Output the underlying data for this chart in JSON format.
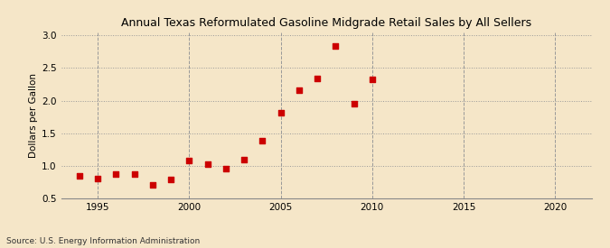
{
  "title": "Annual Texas Reformulated Gasoline Midgrade Retail Sales by All Sellers",
  "ylabel": "Dollars per Gallon",
  "source_text": "Source: U.S. Energy Information Administration",
  "background_color": "#f5e6c8",
  "plot_bg_color": "#f5e6c8",
  "marker_color": "#cc0000",
  "marker": "s",
  "marker_size": 4,
  "xlim": [
    1993,
    2022
  ],
  "ylim": [
    0.5,
    3.05
  ],
  "xticks": [
    1995,
    2000,
    2005,
    2010,
    2015,
    2020
  ],
  "yticks": [
    0.5,
    1.0,
    1.5,
    2.0,
    2.5,
    3.0
  ],
  "years": [
    1994,
    1995,
    1996,
    1997,
    1998,
    1999,
    2000,
    2001,
    2002,
    2003,
    2004,
    2005,
    2006,
    2007,
    2008,
    2009,
    2010
  ],
  "values": [
    0.85,
    0.81,
    0.87,
    0.87,
    0.71,
    0.79,
    1.08,
    1.03,
    0.96,
    1.1,
    1.38,
    1.82,
    2.16,
    2.34,
    2.84,
    1.95,
    2.33
  ]
}
